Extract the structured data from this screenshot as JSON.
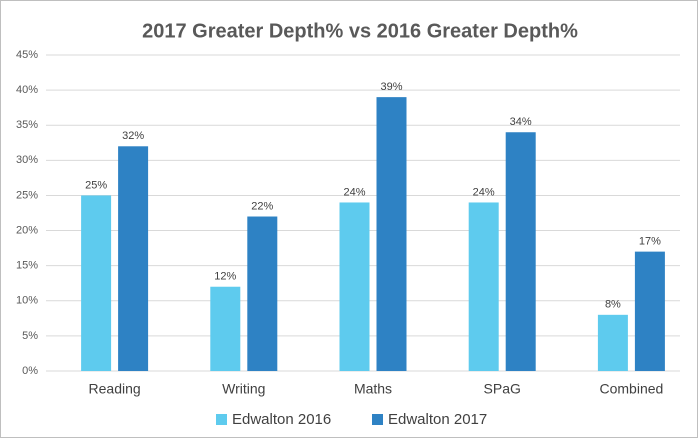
{
  "chart_data": {
    "type": "bar",
    "title": "2017 Greater Depth% vs 2016 Greater Depth%",
    "categories": [
      "Reading",
      "Writing",
      "Maths",
      "SPaG",
      "Combined"
    ],
    "series": [
      {
        "name": "Edwalton 2016",
        "color": "#5ecbee",
        "values": [
          25,
          12,
          24,
          24,
          8
        ],
        "value_labels": [
          "25%",
          "12%",
          "24%",
          "24%",
          "8%"
        ]
      },
      {
        "name": "Edwalton 2017",
        "color": "#2e82c4",
        "values": [
          32,
          22,
          39,
          34,
          17
        ],
        "value_labels": [
          "32%",
          "22%",
          "39%",
          "34%",
          "17%"
        ]
      }
    ],
    "ylim": [
      0,
      45
    ],
    "yticks": [
      {
        "value": 0,
        "label": "0%"
      },
      {
        "value": 5,
        "label": "5%"
      },
      {
        "value": 10,
        "label": "10%"
      },
      {
        "value": 15,
        "label": "15%"
      },
      {
        "value": 20,
        "label": "20%"
      },
      {
        "value": 25,
        "label": "25%"
      },
      {
        "value": 30,
        "label": "30%"
      },
      {
        "value": 35,
        "label": "35%"
      },
      {
        "value": 40,
        "label": "40%"
      },
      {
        "value": 45,
        "label": "45%"
      }
    ],
    "grid": true,
    "legend": "bottom"
  }
}
